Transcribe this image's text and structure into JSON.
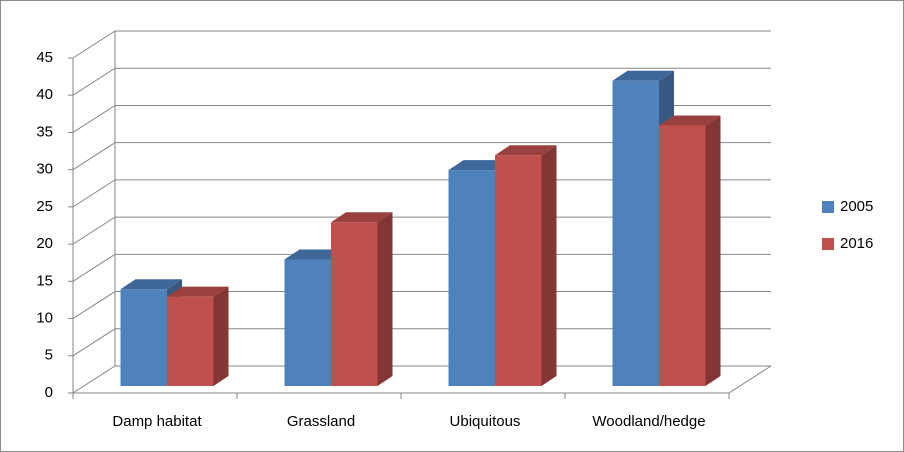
{
  "chart_data": {
    "type": "bar3d",
    "categories": [
      "Damp habitat",
      "Grassland",
      "Ubiquitous",
      "Woodland/hedge"
    ],
    "series": [
      {
        "name": "2005",
        "color": "#4f81bd",
        "values": [
          13,
          17,
          29,
          41
        ]
      },
      {
        "name": "2016",
        "color": "#c0504d",
        "values": [
          12,
          22,
          31,
          35
        ]
      }
    ],
    "ylim": [
      0,
      45
    ],
    "yticks": [
      0,
      5,
      10,
      15,
      20,
      25,
      30,
      35,
      40,
      45
    ],
    "grid": true,
    "legend": "right"
  }
}
